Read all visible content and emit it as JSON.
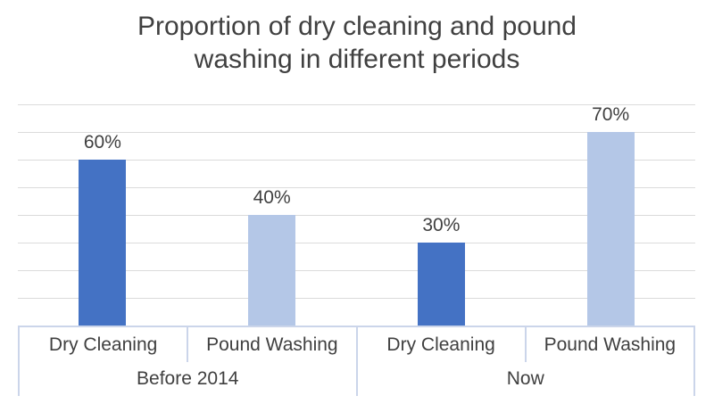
{
  "chart_data": {
    "type": "bar",
    "title": "Proportion of dry cleaning and pound washing in different periods",
    "xlabel": "",
    "ylabel": "",
    "unit": "%",
    "ylim": [
      0,
      80
    ],
    "grid_step": 10,
    "grid": true,
    "legend_position": "none",
    "groups": [
      {
        "label": "Before 2014",
        "bars": [
          {
            "category": "Dry Cleaning",
            "value": 60,
            "data_label": "60%",
            "color": "#4472C4"
          },
          {
            "category": "Pound Washing",
            "value": 40,
            "data_label": "40%",
            "color": "#B4C7E7"
          }
        ]
      },
      {
        "label": "Now",
        "bars": [
          {
            "category": "Dry Cleaning",
            "value": 30,
            "data_label": "30%",
            "color": "#4472C4"
          },
          {
            "category": "Pound Washing",
            "value": 70,
            "data_label": "70%",
            "color": "#B4C7E7"
          }
        ]
      }
    ],
    "colors": {
      "dry_cleaning": "#4472C4",
      "pound_washing": "#B4C7E7",
      "gridline": "#DBDBDB",
      "axis_line": "#CBD5EA",
      "text": "#404040",
      "background": "#FFFFFF"
    }
  }
}
